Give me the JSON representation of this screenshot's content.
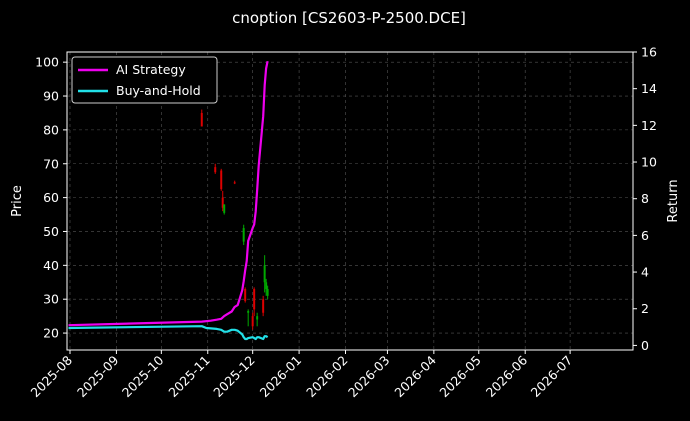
{
  "chart_data": {
    "type": "line",
    "title": "cnoption [CS2603-P-2500.DCE]",
    "ylabel": "Price",
    "y2label": "Return",
    "x_ticks": [
      "2025-08",
      "2025-09",
      "2025-10",
      "2025-11",
      "2025-12",
      "2026-01",
      "2026-02",
      "2026-03",
      "2026-04",
      "2026-05",
      "2026-06",
      "2026-07"
    ],
    "xlim": [
      "2025-07-30",
      "2026-08-12"
    ],
    "ylim": [
      15,
      103
    ],
    "y_ticks": [
      20,
      30,
      40,
      50,
      60,
      70,
      80,
      90,
      100
    ],
    "y2lim": [
      -0.25,
      16
    ],
    "y2_ticks": [
      0,
      2,
      4,
      6,
      8,
      10,
      12,
      14,
      16
    ],
    "grid": true,
    "legend_position": "top-left",
    "colors": {
      "background": "#000000",
      "strategy": "#ee00ee",
      "buyhold": "#22e0e8",
      "up": "#00aa00",
      "down": "#dd0000",
      "grid": "#555555"
    },
    "series": [
      {
        "name": "AI Strategy",
        "axis": "return",
        "color": "#ee00ee",
        "x": [
          "2025-07-31",
          "2025-10-28",
          "2025-11-03",
          "2025-11-07",
          "2025-11-10",
          "2025-11-12",
          "2025-11-14",
          "2025-11-17",
          "2025-11-19",
          "2025-11-21",
          "2025-11-24",
          "2025-11-25",
          "2025-11-26",
          "2025-11-27",
          "2025-11-28",
          "2025-12-01",
          "2025-12-02",
          "2025-12-03",
          "2025-12-04",
          "2025-12-05",
          "2025-12-08",
          "2025-12-09",
          "2025-12-10",
          "2025-12-11"
        ],
        "y": [
          1.1,
          1.3,
          1.35,
          1.4,
          1.45,
          1.6,
          1.7,
          1.85,
          2.1,
          2.2,
          3.0,
          3.5,
          4.1,
          4.6,
          5.7,
          6.4,
          6.6,
          7.3,
          8.5,
          9.8,
          12.5,
          14.2,
          15.1,
          15.5
        ]
      },
      {
        "name": "Buy-and-Hold",
        "axis": "return",
        "color": "#22e0e8",
        "x": [
          "2025-07-31",
          "2025-10-28",
          "2025-10-31",
          "2025-11-07",
          "2025-11-10",
          "2025-11-12",
          "2025-11-14",
          "2025-11-17",
          "2025-11-19",
          "2025-11-21",
          "2025-11-24",
          "2025-11-25",
          "2025-11-26",
          "2025-11-27",
          "2025-11-28",
          "2025-12-01",
          "2025-12-02",
          "2025-12-03",
          "2025-12-04",
          "2025-12-05",
          "2025-12-08",
          "2025-12-09",
          "2025-12-10",
          "2025-12-11"
        ],
        "y": [
          0.95,
          1.05,
          0.95,
          0.9,
          0.85,
          0.75,
          0.75,
          0.85,
          0.85,
          0.8,
          0.6,
          0.45,
          0.35,
          0.35,
          0.4,
          0.45,
          0.4,
          0.35,
          0.45,
          0.45,
          0.35,
          0.5,
          0.5,
          0.45
        ]
      }
    ],
    "candles": [
      {
        "x": "2025-10-28",
        "o": 85,
        "h": 86,
        "l": 81,
        "c": 81
      },
      {
        "x": "2025-11-06",
        "o": 69,
        "h": 70,
        "l": 67,
        "c": 67.5
      },
      {
        "x": "2025-11-10",
        "o": 68,
        "h": 68.5,
        "l": 62,
        "c": 62.5
      },
      {
        "x": "2025-11-11",
        "o": 60,
        "h": 62,
        "l": 56,
        "c": 57
      },
      {
        "x": "2025-11-12",
        "o": 55.5,
        "h": 58,
        "l": 55,
        "c": 58
      },
      {
        "x": "2025-11-19",
        "o": 64.5,
        "h": 65,
        "l": 64,
        "c": 64.2
      },
      {
        "x": "2025-11-25",
        "o": 47,
        "h": 52,
        "l": 46,
        "c": 51
      },
      {
        "x": "2025-11-26",
        "o": 33,
        "h": 33.5,
        "l": 29,
        "c": 29.5
      },
      {
        "x": "2025-11-28",
        "o": 26,
        "h": 27,
        "l": 22,
        "c": 26.5
      },
      {
        "x": "2025-12-01",
        "o": 25,
        "h": 26,
        "l": 21,
        "c": 22
      },
      {
        "x": "2025-12-02",
        "o": 33,
        "h": 33.5,
        "l": 25,
        "c": 27
      },
      {
        "x": "2025-12-04",
        "o": 24,
        "h": 26,
        "l": 22,
        "c": 25
      },
      {
        "x": "2025-12-08",
        "o": 30,
        "h": 31,
        "l": 25,
        "c": 26
      },
      {
        "x": "2025-12-09",
        "o": 35,
        "h": 43,
        "l": 32,
        "c": 40
      },
      {
        "x": "2025-12-10",
        "o": 33,
        "h": 36,
        "l": 31,
        "c": 35
      },
      {
        "x": "2025-12-11",
        "o": 31,
        "h": 34,
        "l": 30,
        "c": 33
      }
    ]
  }
}
